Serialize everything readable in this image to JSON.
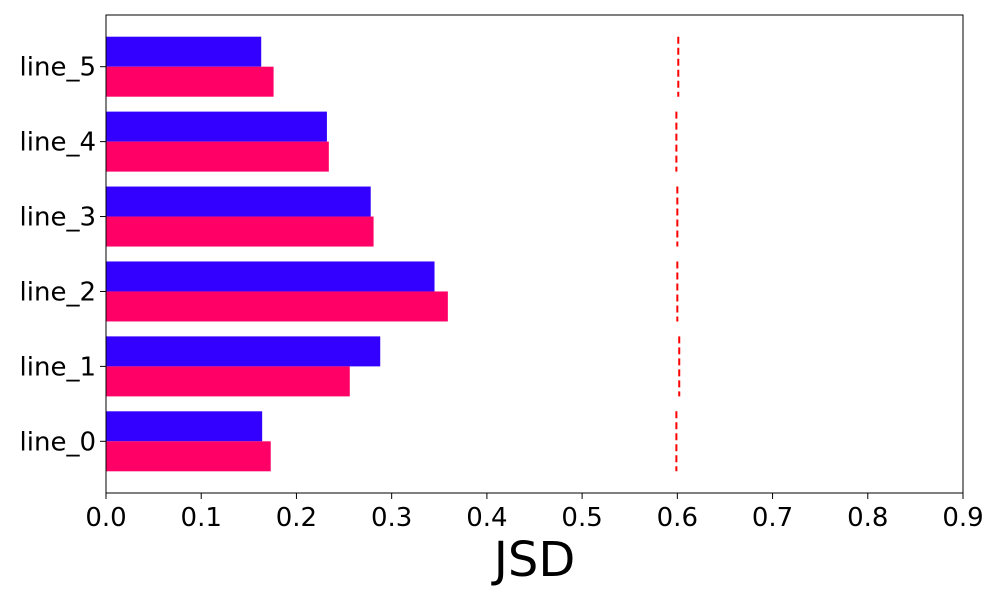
{
  "chart_data": {
    "type": "bar",
    "orientation": "horizontal",
    "title": "",
    "xlabel": "JSD",
    "ylabel": "",
    "xlim": [
      0,
      0.9
    ],
    "xticks": [
      0.0,
      0.1,
      0.2,
      0.3,
      0.4,
      0.5,
      0.6,
      0.7,
      0.8,
      0.9
    ],
    "xtick_labels": [
      "0.0",
      "0.1",
      "0.2",
      "0.3",
      "0.4",
      "0.5",
      "0.6",
      "0.7",
      "0.8",
      "0.9"
    ],
    "categories": [
      "line_0",
      "line_1",
      "line_2",
      "line_3",
      "line_4",
      "line_5"
    ],
    "series": [
      {
        "color": "#3300ff",
        "values": [
          0.164,
          0.288,
          0.345,
          0.278,
          0.232,
          0.163
        ]
      },
      {
        "color": "#ff0066",
        "values": [
          0.173,
          0.256,
          0.359,
          0.281,
          0.234,
          0.176
        ]
      }
    ],
    "reference_lines": {
      "color": "#ff0000",
      "style": "dashed",
      "values": [
        0.599,
        0.602,
        0.6,
        0.6,
        0.599,
        0.601
      ]
    },
    "grid": false,
    "legend": "none"
  }
}
